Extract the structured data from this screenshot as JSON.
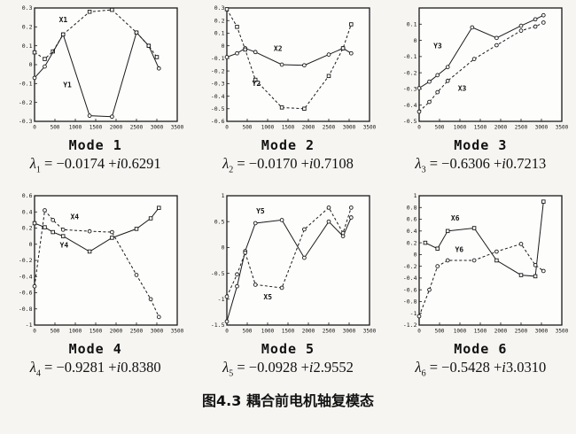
{
  "figure": {
    "caption": "图4.3 耦合前电机轴复模态"
  },
  "chart_data": [
    {
      "type": "line",
      "title": "Mode 1",
      "lambda": {
        "symbol": "λ",
        "sub": "1",
        "eq": "= −0.0174 +",
        "i": "i",
        "im": "0.6291"
      },
      "xlim": [
        0,
        3500
      ],
      "ylim": [
        -0.3,
        0.3
      ],
      "xticks": [
        0,
        500,
        1000,
        1500,
        2000,
        2500,
        3000,
        3500
      ],
      "yticks": [
        0.3,
        0.2,
        0.1,
        0,
        -0.1,
        -0.2,
        -0.3
      ],
      "series": [
        {
          "name": "X1",
          "style": "dashed",
          "marker": "square",
          "label_x": 600,
          "label_y": 0.225,
          "x": [
            0,
            250,
            450,
            700,
            1350,
            1900,
            2500,
            2800,
            3000
          ],
          "y": [
            0.065,
            0.03,
            0.07,
            0.16,
            0.28,
            0.29,
            0.17,
            0.1,
            0.04
          ]
        },
        {
          "name": "Y1",
          "style": "solid",
          "marker": "circle",
          "label_x": 700,
          "label_y": -0.12,
          "x": [
            0,
            250,
            700,
            1350,
            1900,
            2500,
            2800,
            3050
          ],
          "y": [
            -0.07,
            -0.01,
            0.16,
            -0.27,
            -0.275,
            0.17,
            0.1,
            -0.02
          ]
        }
      ]
    },
    {
      "type": "line",
      "title": "Mode 2",
      "lambda": {
        "symbol": "λ",
        "sub": "2",
        "eq": "= −0.0170 +",
        "i": "i",
        "im": "0.7108"
      },
      "xlim": [
        0,
        3500
      ],
      "ylim": [
        -0.6,
        0.3
      ],
      "xticks": [
        0,
        500,
        1000,
        1500,
        2000,
        2500,
        3000,
        3500
      ],
      "yticks": [
        0.3,
        0.2,
        0.1,
        0,
        -0.1,
        -0.2,
        -0.3,
        -0.4,
        -0.5,
        -0.6
      ],
      "series": [
        {
          "name": "X2",
          "style": "solid",
          "marker": "circle",
          "label_x": 1150,
          "label_y": -0.04,
          "x": [
            0,
            250,
            450,
            700,
            1350,
            1900,
            2500,
            2850,
            3050
          ],
          "y": [
            -0.09,
            -0.06,
            -0.02,
            -0.05,
            -0.15,
            -0.155,
            -0.07,
            -0.02,
            -0.06
          ]
        },
        {
          "name": "Y2",
          "style": "dashed",
          "marker": "square",
          "label_x": 620,
          "label_y": -0.32,
          "x": [
            0,
            250,
            450,
            700,
            1350,
            1900,
            2500,
            2850,
            3050
          ],
          "y": [
            0.29,
            0.15,
            -0.03,
            -0.27,
            -0.49,
            -0.5,
            -0.24,
            -0.02,
            0.17
          ]
        }
      ]
    },
    {
      "type": "line",
      "title": "Mode 3",
      "lambda": {
        "symbol": "λ",
        "sub": "3",
        "eq": "= −0.6306 +",
        "i": "i",
        "im": "0.7213"
      },
      "xlim": [
        0,
        3500
      ],
      "ylim": [
        -0.5,
        0.2
      ],
      "xticks": [
        0,
        500,
        1000,
        1500,
        2000,
        2500,
        3000,
        3500
      ],
      "yticks": [
        0.1,
        0,
        -0.1,
        -0.2,
        -0.3,
        -0.4,
        -0.5
      ],
      "series": [
        {
          "name": "Y3",
          "style": "solid",
          "marker": "circle",
          "label_x": 350,
          "label_y": -0.05,
          "x": [
            0,
            250,
            450,
            700,
            1300,
            1900,
            2500,
            2850,
            3050
          ],
          "y": [
            -0.295,
            -0.255,
            -0.215,
            -0.165,
            0.08,
            0.015,
            0.09,
            0.13,
            0.155
          ]
        },
        {
          "name": "X3",
          "style": "dashed",
          "marker": "circle",
          "label_x": 950,
          "label_y": -0.31,
          "x": [
            0,
            250,
            450,
            700,
            1350,
            1900,
            2500,
            2850,
            3050
          ],
          "y": [
            -0.44,
            -0.38,
            -0.32,
            -0.25,
            -0.115,
            -0.03,
            0.06,
            0.085,
            0.11
          ]
        }
      ]
    },
    {
      "type": "line",
      "title": "Mode 4",
      "lambda": {
        "symbol": "λ",
        "sub": "4",
        "eq": "= −0.9281 +",
        "i": "i",
        "im": "0.8380"
      },
      "xlim": [
        0,
        3500
      ],
      "ylim": [
        -1,
        0.6
      ],
      "xticks": [
        0,
        500,
        1000,
        1500,
        2000,
        2500,
        3000,
        3500
      ],
      "yticks": [
        0.6,
        0.4,
        0.2,
        0,
        -0.2,
        -0.4,
        -0.6,
        -0.8,
        -1
      ],
      "series": [
        {
          "name": "X4",
          "style": "dashed",
          "marker": "circle",
          "label_x": 880,
          "label_y": 0.31,
          "x": [
            0,
            250,
            450,
            700,
            1350,
            1900,
            2500,
            2850,
            3050
          ],
          "y": [
            -0.52,
            0.42,
            0.3,
            0.18,
            0.16,
            0.15,
            -0.38,
            -0.68,
            -0.9
          ]
        },
        {
          "name": "Y4",
          "style": "solid",
          "marker": "square",
          "label_x": 620,
          "label_y": -0.04,
          "x": [
            0,
            250,
            450,
            700,
            1350,
            1900,
            2500,
            2850,
            3050
          ],
          "y": [
            0.26,
            0.21,
            0.15,
            0.1,
            -0.09,
            0.08,
            0.19,
            0.32,
            0.45
          ]
        }
      ]
    },
    {
      "type": "line",
      "title": "Mode 5",
      "lambda": {
        "symbol": "λ",
        "sub": "5",
        "eq": "= −0.0928 +",
        "i": "i",
        "im": "2.9552"
      },
      "xlim": [
        0,
        3500
      ],
      "ylim": [
        -1.5,
        1
      ],
      "xticks": [
        0,
        500,
        1000,
        1500,
        2000,
        2500,
        3000,
        3500
      ],
      "yticks": [
        1,
        0.5,
        0,
        -0.5,
        -1,
        -1.5
      ],
      "series": [
        {
          "name": "Y5",
          "style": "solid",
          "marker": "circle",
          "label_x": 720,
          "label_y": 0.66,
          "x": [
            0,
            250,
            450,
            700,
            1350,
            1900,
            2500,
            2850,
            3050
          ],
          "y": [
            -1.43,
            -0.75,
            -0.07,
            0.47,
            0.53,
            -0.2,
            0.5,
            0.22,
            0.58
          ]
        },
        {
          "name": "X5",
          "style": "dashed",
          "marker": "circle",
          "label_x": 900,
          "label_y": -1.0,
          "x": [
            0,
            250,
            450,
            700,
            1350,
            1900,
            2500,
            2850,
            3050
          ],
          "y": [
            -0.95,
            -0.52,
            -0.1,
            -0.72,
            -0.78,
            0.35,
            0.77,
            0.28,
            0.77
          ]
        }
      ]
    },
    {
      "type": "line",
      "title": "Mode 6",
      "lambda": {
        "symbol": "λ",
        "sub": "6",
        "eq": "= −0.5428 +",
        "i": "i",
        "im": "3.0310"
      },
      "xlim": [
        0,
        3500
      ],
      "ylim": [
        -1.2,
        1
      ],
      "xticks": [
        0,
        500,
        1000,
        1500,
        2000,
        2500,
        3000,
        3500
      ],
      "yticks": [
        1,
        0.8,
        0.6,
        0.4,
        0.2,
        0,
        -0.2,
        -0.4,
        -0.6,
        -0.8,
        -1,
        -1.2
      ],
      "series": [
        {
          "name": "X6",
          "style": "solid",
          "marker": "square",
          "label_x": 780,
          "label_y": 0.58,
          "x": [
            150,
            450,
            700,
            1350,
            1900,
            2500,
            2850,
            3050
          ],
          "y": [
            0.2,
            0.1,
            0.4,
            0.45,
            -0.1,
            -0.35,
            -0.37,
            0.9
          ]
        },
        {
          "name": "Y6",
          "style": "dashed",
          "marker": "circle",
          "label_x": 880,
          "label_y": 0.04,
          "x": [
            0,
            250,
            450,
            700,
            1350,
            1900,
            2500,
            2850,
            3050
          ],
          "y": [
            -1.05,
            -0.6,
            -0.2,
            -0.1,
            -0.1,
            0.05,
            0.18,
            -0.18,
            -0.28
          ]
        }
      ]
    }
  ]
}
